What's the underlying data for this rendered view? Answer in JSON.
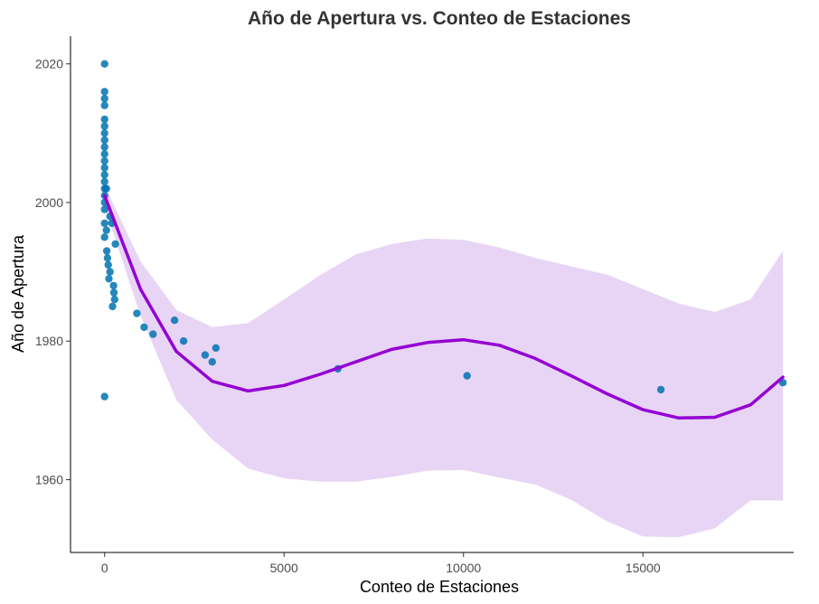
{
  "chart_data": {
    "type": "scatter",
    "title": "Año de Apertura vs. Conteo de Estaciones",
    "xlabel": "Conteo de Estaciones",
    "ylabel": "Año de Apertura",
    "xlim": [
      -950,
      19200
    ],
    "ylim": [
      1949.5,
      2024
    ],
    "x_ticks": [
      0,
      5000,
      10000,
      15000
    ],
    "y_ticks": [
      1960,
      1980,
      2000,
      2020
    ],
    "grid": false,
    "legend": "none",
    "colors": {
      "points": "#0072b2",
      "smooth_line": "#9400d3",
      "ribbon": "#e8d5f5",
      "title": "#333333"
    },
    "points": [
      {
        "x": 0,
        "y": 2020
      },
      {
        "x": 0,
        "y": 2016
      },
      {
        "x": 0,
        "y": 2015
      },
      {
        "x": 0,
        "y": 2014
      },
      {
        "x": 0,
        "y": 2012
      },
      {
        "x": 0,
        "y": 2011
      },
      {
        "x": 0,
        "y": 2010
      },
      {
        "x": 0,
        "y": 2009
      },
      {
        "x": 0,
        "y": 2008
      },
      {
        "x": 0,
        "y": 2007
      },
      {
        "x": 0,
        "y": 2006
      },
      {
        "x": 0,
        "y": 2005
      },
      {
        "x": 0,
        "y": 2004
      },
      {
        "x": 0,
        "y": 2003
      },
      {
        "x": 0,
        "y": 2002
      },
      {
        "x": 0,
        "y": 2001
      },
      {
        "x": 0,
        "y": 2000
      },
      {
        "x": 0,
        "y": 1999
      },
      {
        "x": 0,
        "y": 1997
      },
      {
        "x": 0,
        "y": 1995
      },
      {
        "x": 0,
        "y": 1972
      },
      {
        "x": 50,
        "y": 2002
      },
      {
        "x": 50,
        "y": 1996
      },
      {
        "x": 60,
        "y": 1993
      },
      {
        "x": 80,
        "y": 1992
      },
      {
        "x": 100,
        "y": 1991
      },
      {
        "x": 120,
        "y": 1989
      },
      {
        "x": 150,
        "y": 1990
      },
      {
        "x": 150,
        "y": 1998
      },
      {
        "x": 200,
        "y": 1997
      },
      {
        "x": 220,
        "y": 1985
      },
      {
        "x": 250,
        "y": 1988
      },
      {
        "x": 260,
        "y": 1987
      },
      {
        "x": 280,
        "y": 1986
      },
      {
        "x": 300,
        "y": 1994
      },
      {
        "x": 900,
        "y": 1984
      },
      {
        "x": 1100,
        "y": 1982
      },
      {
        "x": 1350,
        "y": 1981
      },
      {
        "x": 1950,
        "y": 1983
      },
      {
        "x": 2200,
        "y": 1980
      },
      {
        "x": 2800,
        "y": 1978
      },
      {
        "x": 3000,
        "y": 1977
      },
      {
        "x": 3100,
        "y": 1979
      },
      {
        "x": 6500,
        "y": 1976
      },
      {
        "x": 10100,
        "y": 1975
      },
      {
        "x": 15500,
        "y": 1973
      },
      {
        "x": 18900,
        "y": 1974
      }
    ],
    "smooth": {
      "x": [
        0,
        1000,
        2000,
        3000,
        4000,
        5000,
        6000,
        7000,
        8000,
        9000,
        10000,
        11000,
        12000,
        13000,
        14000,
        15000,
        16000,
        17000,
        18000,
        18900
      ],
      "y": [
        2001,
        1987.5,
        1978.5,
        1974.2,
        1972.8,
        1973.6,
        1975.2,
        1977.0,
        1978.8,
        1979.8,
        1980.2,
        1979.4,
        1977.5,
        1975.0,
        1972.4,
        1970.1,
        1968.9,
        1969.0,
        1970.8,
        1974.8
      ],
      "lower": [
        1999.4,
        1983.7,
        1971.5,
        1965.8,
        1961.6,
        1960.2,
        1959.7,
        1959.7,
        1960.4,
        1961.3,
        1961.4,
        1960.3,
        1959.3,
        1957.1,
        1954.0,
        1951.8,
        1951.7,
        1953.0,
        1957.0,
        1957.0
      ],
      "upper": [
        2002.5,
        1991.5,
        1984.5,
        1982.0,
        1982.6,
        1986.0,
        1989.5,
        1992.5,
        1994.0,
        1994.8,
        1994.6,
        1993.5,
        1992.0,
        1990.8,
        1989.6,
        1987.5,
        1985.4,
        1984.2,
        1986.0,
        1993.0
      ]
    }
  }
}
